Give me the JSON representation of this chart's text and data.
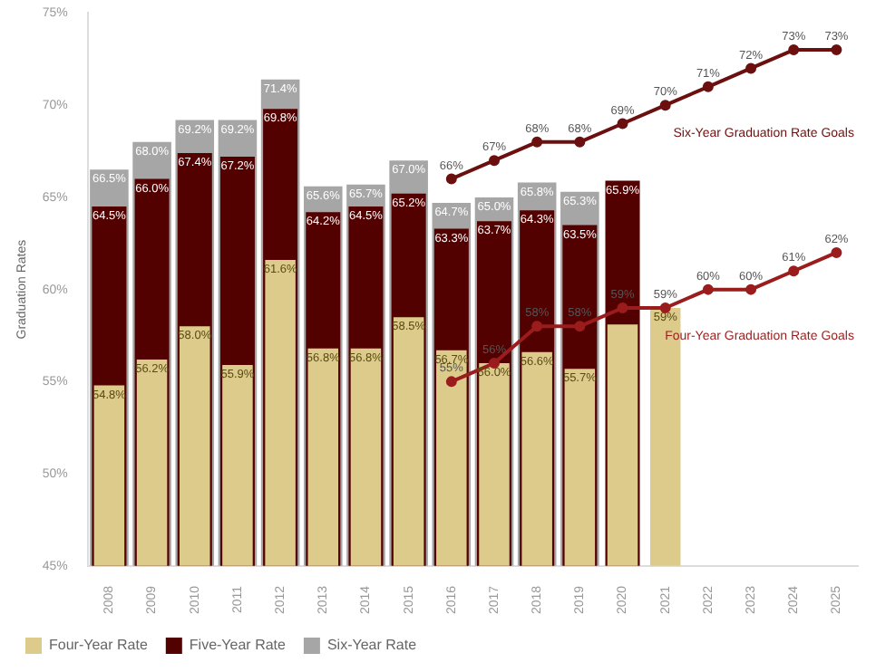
{
  "chart_data": {
    "type": "bar",
    "ylabel": "Graduation Rates",
    "categories": [
      "2008",
      "2009",
      "2010",
      "2011",
      "2012",
      "2013",
      "2014",
      "2015",
      "2016",
      "2017",
      "2018",
      "2019",
      "2020",
      "2021",
      "2022",
      "2023",
      "2024",
      "2025"
    ],
    "ylim": [
      45,
      75
    ],
    "yticks": [
      {
        "value": 45,
        "label": "45%"
      },
      {
        "value": 50,
        "label": "50%"
      },
      {
        "value": 55,
        "label": "55%"
      },
      {
        "value": 60,
        "label": "60%"
      },
      {
        "value": 65,
        "label": "65%"
      },
      {
        "value": 70,
        "label": "70%"
      },
      {
        "value": 75,
        "label": "75%"
      }
    ],
    "grid": false,
    "legend": "bottom left",
    "series": [
      {
        "name": "Four-Year Rate",
        "color": "#dccb8a",
        "values": [
          54.8,
          56.2,
          58.0,
          55.9,
          61.6,
          56.8,
          56.8,
          58.5,
          56.7,
          56.0,
          56.6,
          55.7,
          58.1,
          59,
          null,
          null,
          null,
          null
        ],
        "value_labels": [
          "54.8%",
          "56.2%",
          "58.0%",
          "55.9%",
          "61.6%",
          "56.8%",
          "56.8%",
          "58.5%",
          "56.7%",
          "56.0%",
          "56.6%",
          "55.7%",
          null,
          "59%",
          null,
          null,
          null,
          null
        ]
      },
      {
        "name": "Five-Year Rate",
        "color": "#520000",
        "values": [
          64.5,
          66.0,
          67.4,
          67.2,
          69.8,
          64.2,
          64.5,
          65.2,
          63.3,
          63.7,
          64.3,
          63.5,
          65.9,
          null,
          null,
          null,
          null,
          null
        ],
        "value_labels": [
          "64.5%",
          "66.0%",
          "67.4%",
          "67.2%",
          "69.8%",
          "64.2%",
          "64.5%",
          "65.2%",
          "63.3%",
          "63.7%",
          "64.3%",
          "63.5%",
          "65.9%",
          null,
          null,
          null,
          null,
          null
        ]
      },
      {
        "name": "Six-Year Rate",
        "color": "#a6a6a6",
        "values": [
          66.5,
          68.0,
          69.2,
          69.2,
          71.4,
          65.6,
          65.7,
          67.0,
          64.7,
          65.0,
          65.8,
          65.3,
          null,
          null,
          null,
          null,
          null,
          null
        ],
        "value_labels": [
          "66.5%",
          "68.0%",
          "69.2%",
          "69.2%",
          "71.4%",
          "65.6%",
          "65.7%",
          "67.0%",
          "64.7%",
          "65.0%",
          "65.8%",
          "65.3%",
          null,
          null,
          null,
          null,
          null,
          null
        ]
      },
      {
        "type": "line",
        "name": "Six-Year Graduation Rate Goals",
        "color": "#6b0f0f",
        "values": [
          null,
          null,
          null,
          null,
          null,
          null,
          null,
          null,
          66,
          67,
          68,
          68,
          69,
          70,
          71,
          72,
          73,
          73
        ],
        "value_labels": [
          null,
          null,
          null,
          null,
          null,
          null,
          null,
          null,
          "66%",
          "67%",
          "68%",
          "68%",
          "69%",
          "70%",
          "71%",
          "72%",
          "73%",
          "73%"
        ]
      },
      {
        "type": "line",
        "name": "Four-Year Graduation Rate Goals",
        "color": "#9b1c1c",
        "values": [
          null,
          null,
          null,
          null,
          null,
          null,
          null,
          null,
          55,
          56,
          58,
          58,
          59,
          59,
          60,
          60,
          61,
          62
        ],
        "value_labels": [
          null,
          null,
          null,
          null,
          null,
          null,
          null,
          null,
          "55%",
          "56%",
          "58%",
          "58%",
          "59%",
          "59%",
          "60%",
          "60%",
          "61%",
          "62%"
        ]
      }
    ],
    "marker": "circle",
    "line_style": "solid"
  }
}
